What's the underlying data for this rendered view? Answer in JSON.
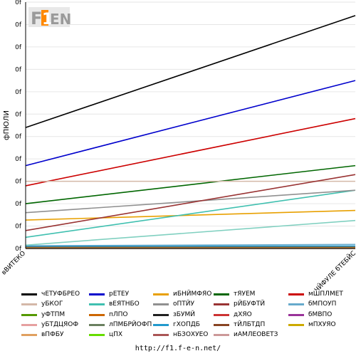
{
  "logo_text": "F1EN",
  "footer_url": "http://f1.f-e-n.net/",
  "chart_data": {
    "type": "line",
    "ylabel": "фПЮЛИ",
    "y_tick_labels": [
      "0f",
      "0f",
      "0f",
      "0f",
      "0f",
      "0f",
      "0f",
      "0f",
      "0f",
      "0f",
      "0f",
      "0f"
    ],
    "x_tick_labels": [
      "вВИТЕКО",
      "ЧЙФУЛЕ бТЕБЙС"
    ],
    "x": [
      0,
      1
    ],
    "grid": "horizontal",
    "legend_position": "bottom",
    "series": [
      {
        "name": "чЕТУФБРЕО",
        "color": "#000000",
        "values": [
          5.4,
          10.4
        ]
      },
      {
        "name": "рЕТЕУ",
        "color": "#0000cc",
        "values": [
          3.7,
          7.5
        ]
      },
      {
        "name": "иБНЙМФЯО",
        "color": "#e8a000",
        "values": [
          1.27,
          1.7
        ]
      },
      {
        "name": "тЯУЕМ",
        "color": "#006600",
        "values": [
          2.0,
          3.7
        ]
      },
      {
        "name": "мШПЛМЕТ",
        "color": "#cc0000",
        "values": [
          2.8,
          5.8
        ]
      },
      {
        "name": "уБКОГ",
        "color": "#d4b8a8",
        "values": [
          3.0,
          3.0
        ]
      },
      {
        "name": "вЕЯТНБО",
        "color": "#40c0b0",
        "values": [
          0.5,
          2.6
        ]
      },
      {
        "name": "оПТЙУ",
        "color": "#909090",
        "values": [
          1.6,
          2.6
        ]
      },
      {
        "name": "рЙБУФТЙ",
        "color": "#993333",
        "values": [
          0.8,
          3.3
        ]
      },
      {
        "name": "бМПОУП",
        "color": "#66aacc",
        "values": [
          0.12,
          0.18
        ]
      },
      {
        "name": "уФТПМ",
        "color": "#559900",
        "values": [
          0.06,
          0.06
        ]
      },
      {
        "name": "пЛПО",
        "color": "#cc6600",
        "values": [
          0.04,
          0.04
        ]
      },
      {
        "name": "зБУМЙ",
        "color": "#202020",
        "values": [
          0.03,
          0.03
        ]
      },
      {
        "name": "дХЯО",
        "color": "#cc3333",
        "values": [
          0.02,
          0.02
        ]
      },
      {
        "name": "бМВПО",
        "color": "#993399",
        "values": [
          0.01,
          0.01
        ]
      },
      {
        "name": "уБТДЦЯОФ",
        "color": "#e6a0a0",
        "values": [
          0.07,
          0.07
        ]
      },
      {
        "name": "лПМБРЙОФП",
        "color": "#6a8060",
        "values": [
          0.08,
          0.08
        ]
      },
      {
        "name": "гХОПДБ",
        "color": "#2299cc",
        "values": [
          0.09,
          0.11
        ]
      },
      {
        "name": "тЙЛБТДП",
        "color": "#884422",
        "values": [
          0.05,
          0.05
        ]
      },
      {
        "name": "мПХУЯО",
        "color": "#ccaa00",
        "values": [
          0.02,
          0.02
        ]
      },
      {
        "name": "вПФБУ",
        "color": "#e0a060",
        "values": [
          0.01,
          0.01
        ]
      },
      {
        "name": "цПХ",
        "color": "#66dd00",
        "values": [
          0.0,
          0.0
        ]
      },
      {
        "name": "нБЗОХУЕО",
        "color": "#aa5555",
        "values": [
          0.0,
          0.0
        ]
      },
      {
        "name": "иАМЛЕОВЕТЗ",
        "color": "#cc9999",
        "values": [
          0.0,
          0.0
        ]
      },
      {
        "name": "гХОПДБ ",
        "color": "#80d0c0",
        "values": [
          0.15,
          1.25
        ]
      }
    ],
    "legend_order": [
      "чЕТУФБРЕО",
      "рЕТЕУ",
      "иБНЙМФЯО",
      "тЯУЕМ",
      "мШПЛМЕТ",
      "уБКОГ",
      "вЕЯТНБО",
      "оПТЙУ",
      "рЙБУФТЙ",
      "бМПОУП",
      "уФТПМ",
      "пЛПО",
      "зБУМЙ",
      "дХЯО",
      "бМВПО",
      "уБТДЦЯОФ",
      "лПМБРЙОФП",
      "гХОПДБ",
      "тЙЛБТДП",
      "мПХУЯО",
      "вПФБУ",
      "цПХ",
      "нБЗОХУЕО",
      "иАМЛЕОВЕТЗ"
    ],
    "ylim": [
      0,
      11
    ]
  }
}
